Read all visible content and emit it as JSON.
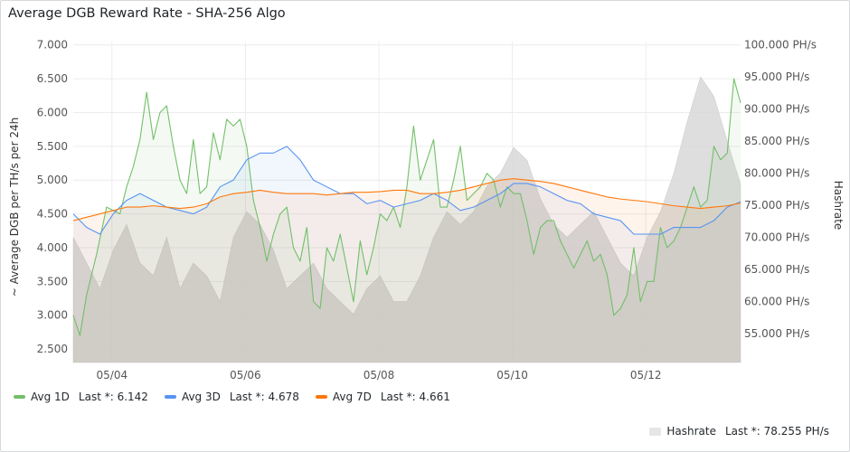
{
  "panel": {
    "title": "Average DGB Reward Rate - SHA-256 Algo"
  },
  "chart_data": {
    "type": "line",
    "title": "Average DGB Reward Rate - SHA-256 Algo",
    "ylabel": "~ Average DGB per TH/s per 24h",
    "y2label": "Hashrate",
    "ylim": [
      2.3,
      7.05
    ],
    "y2lim": [
      50500,
      100500
    ],
    "xlim": [
      0,
      1
    ],
    "yticks": [
      "7.000",
      "6.500",
      "6.000",
      "5.500",
      "5.000",
      "4.500",
      "4.000",
      "3.500",
      "3.000",
      "2.500"
    ],
    "yticks_values": [
      7.0,
      6.5,
      6.0,
      5.5,
      5.0,
      4.5,
      4.0,
      3.5,
      3.0,
      2.5
    ],
    "y2ticks": [
      "100.000 PH/s",
      "95.000 PH/s",
      "90.000 PH/s",
      "85.000 PH/s",
      "80.000 PH/s",
      "75.000 PH/s",
      "70.000 PH/s",
      "65.000 PH/s",
      "60.000 PH/s",
      "55.000 PH/s"
    ],
    "y2ticks_values": [
      100000,
      95000,
      90000,
      85000,
      80000,
      75000,
      70000,
      65000,
      60000,
      55000
    ],
    "xticks": [
      "05/04",
      "05/06",
      "05/08",
      "05/10",
      "05/12"
    ],
    "xticks_pos": [
      0.058,
      0.258,
      0.458,
      0.658,
      0.858
    ],
    "grid": true,
    "legend": "bottom",
    "series": [
      {
        "name": "Avg 1D",
        "color": "#73bf69",
        "x": [
          0,
          0.01,
          0.02,
          0.035,
          0.05,
          0.07,
          0.08,
          0.09,
          0.1,
          0.11,
          0.12,
          0.13,
          0.14,
          0.15,
          0.16,
          0.17,
          0.18,
          0.19,
          0.2,
          0.21,
          0.22,
          0.23,
          0.24,
          0.25,
          0.26,
          0.27,
          0.28,
          0.29,
          0.3,
          0.31,
          0.32,
          0.33,
          0.34,
          0.35,
          0.36,
          0.37,
          0.38,
          0.39,
          0.4,
          0.41,
          0.42,
          0.43,
          0.44,
          0.45,
          0.46,
          0.47,
          0.48,
          0.49,
          0.5,
          0.51,
          0.52,
          0.53,
          0.54,
          0.55,
          0.56,
          0.57,
          0.58,
          0.59,
          0.6,
          0.61,
          0.62,
          0.63,
          0.64,
          0.65,
          0.66,
          0.67,
          0.68,
          0.69,
          0.7,
          0.71,
          0.72,
          0.73,
          0.74,
          0.75,
          0.76,
          0.77,
          0.78,
          0.79,
          0.8,
          0.81,
          0.82,
          0.83,
          0.84,
          0.85,
          0.86,
          0.87,
          0.88,
          0.89,
          0.9,
          0.91,
          0.92,
          0.93,
          0.94,
          0.95,
          0.96,
          0.97,
          0.98,
          0.99,
          1.0
        ],
        "y": [
          3.0,
          2.7,
          3.3,
          3.9,
          4.6,
          4.5,
          4.9,
          5.2,
          5.6,
          6.3,
          5.6,
          6.0,
          6.1,
          5.5,
          5.0,
          4.8,
          5.6,
          4.8,
          4.9,
          5.7,
          5.3,
          5.9,
          5.8,
          5.9,
          5.5,
          4.7,
          4.3,
          3.8,
          4.2,
          4.5,
          4.6,
          4.0,
          3.8,
          4.3,
          3.2,
          3.1,
          4.0,
          3.8,
          4.2,
          3.7,
          3.2,
          4.1,
          3.6,
          4.0,
          4.5,
          4.4,
          4.6,
          4.3,
          4.9,
          5.8,
          5.0,
          5.3,
          5.6,
          4.6,
          4.6,
          5.0,
          5.5,
          4.7,
          4.8,
          4.9,
          5.1,
          5.0,
          4.6,
          4.9,
          4.8,
          4.8,
          4.4,
          3.9,
          4.3,
          4.4,
          4.4,
          4.1,
          3.9,
          3.7,
          3.9,
          4.1,
          3.8,
          3.9,
          3.6,
          3.0,
          3.1,
          3.3,
          4.0,
          3.2,
          3.5,
          3.5,
          4.3,
          4.0,
          4.1,
          4.3,
          4.6,
          4.9,
          4.6,
          4.7,
          5.5,
          5.3,
          5.4,
          6.5,
          6.142
        ]
      },
      {
        "name": "Avg 3D",
        "color": "#5794f2",
        "x": [
          0,
          0.02,
          0.04,
          0.06,
          0.08,
          0.1,
          0.12,
          0.14,
          0.16,
          0.18,
          0.2,
          0.22,
          0.24,
          0.26,
          0.28,
          0.3,
          0.32,
          0.34,
          0.36,
          0.38,
          0.4,
          0.42,
          0.44,
          0.46,
          0.48,
          0.5,
          0.52,
          0.54,
          0.56,
          0.58,
          0.6,
          0.62,
          0.64,
          0.66,
          0.68,
          0.7,
          0.72,
          0.74,
          0.76,
          0.78,
          0.8,
          0.82,
          0.84,
          0.86,
          0.88,
          0.9,
          0.92,
          0.94,
          0.96,
          0.98,
          1.0
        ],
        "y": [
          4.5,
          4.3,
          4.2,
          4.5,
          4.7,
          4.8,
          4.7,
          4.6,
          4.55,
          4.5,
          4.6,
          4.9,
          5.0,
          5.3,
          5.4,
          5.4,
          5.5,
          5.3,
          5.0,
          4.9,
          4.8,
          4.8,
          4.65,
          4.7,
          4.6,
          4.65,
          4.7,
          4.8,
          4.7,
          4.55,
          4.6,
          4.7,
          4.8,
          4.95,
          4.95,
          4.9,
          4.8,
          4.7,
          4.65,
          4.5,
          4.45,
          4.4,
          4.2,
          4.2,
          4.2,
          4.3,
          4.3,
          4.3,
          4.4,
          4.6,
          4.678
        ]
      },
      {
        "name": "Avg 7D",
        "color": "#ff780a",
        "x": [
          0,
          0.02,
          0.04,
          0.06,
          0.08,
          0.1,
          0.12,
          0.14,
          0.16,
          0.18,
          0.2,
          0.22,
          0.24,
          0.26,
          0.28,
          0.3,
          0.32,
          0.34,
          0.36,
          0.38,
          0.4,
          0.42,
          0.44,
          0.46,
          0.48,
          0.5,
          0.52,
          0.54,
          0.56,
          0.58,
          0.6,
          0.62,
          0.64,
          0.66,
          0.68,
          0.7,
          0.72,
          0.74,
          0.76,
          0.78,
          0.8,
          0.82,
          0.84,
          0.86,
          0.88,
          0.9,
          0.92,
          0.94,
          0.96,
          0.98,
          1.0
        ],
        "y": [
          4.4,
          4.45,
          4.5,
          4.55,
          4.6,
          4.6,
          4.62,
          4.6,
          4.58,
          4.6,
          4.65,
          4.75,
          4.8,
          4.82,
          4.85,
          4.82,
          4.8,
          4.8,
          4.8,
          4.78,
          4.8,
          4.82,
          4.82,
          4.83,
          4.85,
          4.85,
          4.8,
          4.8,
          4.82,
          4.85,
          4.9,
          4.95,
          5.0,
          5.02,
          5.0,
          4.98,
          4.95,
          4.9,
          4.85,
          4.8,
          4.75,
          4.72,
          4.7,
          4.68,
          4.65,
          4.62,
          4.6,
          4.58,
          4.6,
          4.62,
          4.661
        ]
      }
    ],
    "hashrate": {
      "name": "Hashrate",
      "color": "#e6e6e6",
      "x": [
        0,
        0.02,
        0.04,
        0.06,
        0.08,
        0.1,
        0.12,
        0.14,
        0.16,
        0.18,
        0.2,
        0.22,
        0.24,
        0.26,
        0.28,
        0.3,
        0.32,
        0.34,
        0.36,
        0.38,
        0.4,
        0.42,
        0.44,
        0.46,
        0.48,
        0.5,
        0.52,
        0.54,
        0.56,
        0.58,
        0.6,
        0.62,
        0.64,
        0.66,
        0.68,
        0.7,
        0.72,
        0.74,
        0.76,
        0.78,
        0.8,
        0.82,
        0.84,
        0.86,
        0.88,
        0.9,
        0.92,
        0.94,
        0.96,
        0.98,
        1.0
      ],
      "y": [
        70000,
        66000,
        62000,
        68000,
        72000,
        66000,
        64000,
        70000,
        62000,
        66000,
        64000,
        60000,
        70000,
        74000,
        72000,
        68000,
        62000,
        64000,
        66000,
        62000,
        60000,
        58000,
        62000,
        64000,
        60000,
        60000,
        64000,
        70000,
        74000,
        72000,
        74000,
        78000,
        80000,
        84000,
        82000,
        76000,
        72000,
        70000,
        72000,
        74000,
        70000,
        66000,
        64000,
        70000,
        74000,
        80000,
        88000,
        95000,
        92000,
        85000,
        78255
      ]
    }
  },
  "legend": {
    "items": [
      {
        "name": "Avg 1D",
        "last": "Last *: 6.142",
        "color": "#73bf69"
      },
      {
        "name": "Avg 3D",
        "last": "Last *: 4.678",
        "color": "#5794f2"
      },
      {
        "name": "Avg 7D",
        "last": "Last *: 4.661",
        "color": "#ff780a"
      }
    ],
    "right": {
      "name": "Hashrate",
      "last": "Last *: 78.255 PH/s",
      "color": "#e6e6e6"
    }
  }
}
